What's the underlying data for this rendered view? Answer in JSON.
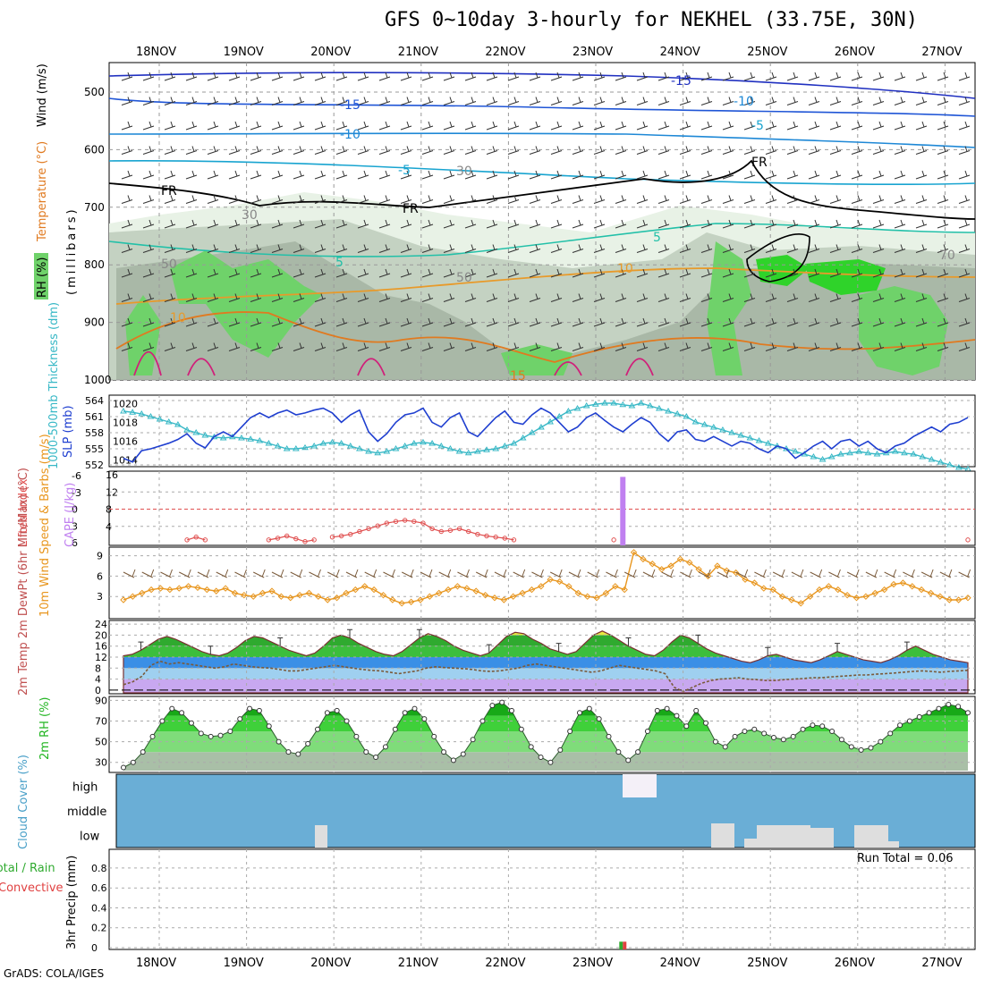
{
  "title": "GFS 0~10day 3-hourly for NEKHEL (33.75E, 30N)",
  "credit": "GrADS: COLA/IGES",
  "colors": {
    "rh_light": "#e8f2e6",
    "rh_mid": "#c4d2c2",
    "rh_gray": "#a9b8a7",
    "rh_green": "#6fd26a",
    "rh_bright": "#2fd32a",
    "cloud_bg": "#6aaed6",
    "cloud_patch": "#dedede",
    "slp": "#1f3fd0",
    "thick": "#38b8c6",
    "li": "#e05050",
    "cape": "#c080f0",
    "wind": "#e8961e",
    "barb": "#7a5a3a",
    "dew": "#7a5a3a",
    "rh2m": "#22b522"
  },
  "chart_data": [
    {
      "type": "heatmap",
      "name": "upper-air",
      "x_dates": [
        "18NOV",
        "19NOV",
        "20NOV",
        "21NOV",
        "22NOV",
        "23NOV",
        "24NOV",
        "25NOV",
        "26NOV",
        "27NOV"
      ],
      "ylabel": "(millibars)",
      "y_ticks": [
        500,
        600,
        700,
        800,
        900,
        1000
      ],
      "legend_rh": "RH (%)",
      "legend_temp": "Temperature (°C)",
      "legend_wind": "Wind (m/s)",
      "contour_labels": [
        "-15",
        "-10",
        "-5",
        "5",
        "10",
        "15",
        "FR",
        "30",
        "50",
        "70"
      ]
    },
    {
      "type": "line",
      "name": "slp-thickness",
      "y_ticks_left": [
        552,
        555,
        558,
        561,
        564
      ],
      "y_ticks_right": [
        1014,
        1016,
        1018,
        1020
      ],
      "ylabel_left": "1000-500mb Thickness (dm)",
      "ylabel_right": "SLP (mb)",
      "series": [
        {
          "name": "SLP (mb)",
          "values": [
            1014.2,
            1013.8,
            1015.0,
            1015.2,
            1015.5,
            1015.8,
            1016.2,
            1016.8,
            1015.8,
            1015.3,
            1016.5,
            1017.0,
            1016.5,
            1017.5,
            1018.5,
            1019.0,
            1018.5,
            1019.0,
            1019.3,
            1018.8,
            1019.0,
            1019.3,
            1019.5,
            1019.0,
            1018.0,
            1018.8,
            1019.3,
            1017.0,
            1016.0,
            1016.8,
            1018.0,
            1018.8,
            1019.0,
            1019.5,
            1018.0,
            1017.5,
            1018.5,
            1019.0,
            1017.0,
            1016.5,
            1017.5,
            1018.5,
            1019.2,
            1018.0,
            1017.8,
            1018.8,
            1019.5,
            1019.0,
            1018.0,
            1017.0,
            1017.5,
            1018.5,
            1019.0,
            1018.2,
            1017.5,
            1017.0,
            1017.8,
            1018.5,
            1018.0,
            1016.8,
            1016.0,
            1017.0,
            1017.2,
            1016.2,
            1016.0,
            1016.5,
            1016.0,
            1015.5,
            1016.0,
            1015.8,
            1015.2,
            1014.8,
            1015.5,
            1015.2,
            1014.2,
            1014.8,
            1015.5,
            1016.0,
            1015.2,
            1016.0,
            1016.2,
            1015.5,
            1016.0,
            1015.2,
            1014.8,
            1015.5,
            1015.8,
            1016.5,
            1017.0,
            1017.5,
            1017.0,
            1017.8,
            1018.0,
            1018.5
          ]
        },
        {
          "name": "Thickness (dm)",
          "values": [
            562.0,
            561.8,
            561.5,
            561.0,
            560.5,
            560.0,
            559.5,
            558.5,
            558.0,
            557.5,
            557.2,
            557.0,
            557.2,
            557.0,
            556.8,
            556.5,
            556.0,
            555.5,
            555.0,
            555.0,
            555.2,
            555.5,
            556.0,
            556.2,
            556.0,
            555.5,
            555.0,
            554.5,
            554.2,
            554.5,
            555.0,
            555.5,
            556.0,
            556.2,
            556.0,
            555.5,
            555.0,
            554.5,
            554.2,
            554.5,
            554.8,
            555.0,
            555.5,
            556.0,
            557.0,
            558.0,
            559.0,
            560.0,
            561.0,
            562.0,
            562.5,
            563.0,
            563.3,
            563.5,
            563.5,
            563.2,
            563.0,
            563.5,
            563.0,
            562.5,
            562.0,
            561.5,
            561.0,
            560.0,
            559.5,
            559.0,
            558.5,
            558.0,
            557.5,
            557.0,
            556.5,
            556.0,
            555.5,
            555.0,
            554.5,
            554.0,
            553.5,
            553.0,
            553.5,
            554.0,
            554.2,
            554.5,
            554.2,
            554.0,
            554.2,
            554.5,
            554.2,
            554.0,
            553.5,
            553.0,
            552.5,
            552.0,
            551.5,
            551.2
          ]
        }
      ]
    },
    {
      "type": "bar",
      "name": "cape-lifted-index",
      "ylabel_left": "Lifted Index",
      "ylabel_right": "CAPE (J/kg)",
      "y_ticks_left": [
        "-6",
        "-3",
        "0",
        "3",
        "6"
      ],
      "y_ticks_right": [
        4,
        8,
        12,
        16
      ],
      "cape_spike": {
        "x_index": 55,
        "value": 15.5
      },
      "li_values": [
        null,
        null,
        null,
        null,
        null,
        null,
        null,
        5.5,
        5.0,
        5.5,
        null,
        null,
        null,
        null,
        null,
        null,
        5.5,
        5.2,
        4.8,
        5.3,
        5.8,
        5.5,
        null,
        5.0,
        4.8,
        4.5,
        4.0,
        3.5,
        3.0,
        2.5,
        2.2,
        2.0,
        2.2,
        2.5,
        3.5,
        4.0,
        3.8,
        3.5,
        4.0,
        4.5,
        4.8,
        5.0,
        5.2,
        5.5,
        null,
        null,
        null,
        null,
        null,
        null,
        null,
        null,
        null,
        null,
        5.5,
        null,
        null,
        null,
        null,
        null,
        null,
        null,
        null,
        null,
        null,
        null,
        null,
        null,
        null,
        null,
        null,
        null,
        null,
        null,
        null,
        null,
        null,
        null,
        null,
        null,
        null,
        null,
        null,
        null,
        null,
        null,
        null,
        null,
        null,
        null,
        null,
        null,
        null,
        5.5
      ]
    },
    {
      "type": "line",
      "name": "10m-wind",
      "ylabel": "10m Wind Speed & Barbs (m/s)",
      "y_ticks": [
        3,
        6,
        9
      ],
      "values": [
        2.5,
        3.0,
        3.5,
        4.0,
        4.2,
        4.0,
        4.2,
        4.5,
        4.3,
        4.0,
        3.8,
        4.2,
        3.5,
        3.2,
        3.0,
        3.5,
        3.8,
        3.0,
        2.8,
        3.2,
        3.5,
        3.0,
        2.5,
        2.8,
        3.5,
        4.0,
        4.5,
        4.0,
        3.2,
        2.5,
        2.0,
        2.2,
        2.5,
        3.0,
        3.5,
        4.0,
        4.5,
        4.2,
        3.8,
        3.2,
        2.8,
        2.5,
        3.0,
        3.5,
        4.0,
        4.5,
        5.5,
        5.2,
        4.5,
        3.5,
        3.0,
        2.8,
        3.5,
        4.5,
        4.0,
        9.5,
        8.5,
        7.8,
        7.0,
        7.5,
        8.5,
        8.0,
        7.0,
        6.0,
        7.5,
        6.8,
        6.5,
        5.5,
        5.0,
        4.2,
        4.0,
        3.0,
        2.5,
        2.0,
        3.0,
        4.0,
        4.5,
        4.0,
        3.2,
        2.8,
        3.0,
        3.5,
        4.0,
        4.8,
        5.0,
        4.5,
        4.0,
        3.5,
        3.0,
        2.5,
        2.5,
        2.8
      ]
    },
    {
      "type": "area",
      "name": "2m-temp-dewpoint",
      "ylabel": "2m Temp 2m DewPt (6hr Min/Max) (°C)",
      "y_ticks": [
        0,
        4,
        8,
        12,
        16,
        20,
        24
      ],
      "temp": [
        12.5,
        13.0,
        14.5,
        16.5,
        18.5,
        19.5,
        18.5,
        17.0,
        15.5,
        14.0,
        13.0,
        12.5,
        13.5,
        15.5,
        18.0,
        19.5,
        19.0,
        17.5,
        16.0,
        14.5,
        13.5,
        12.5,
        13.5,
        16.0,
        19.0,
        20.0,
        19.0,
        17.0,
        15.5,
        14.0,
        13.0,
        12.5,
        14.0,
        16.5,
        19.0,
        20.5,
        19.5,
        18.0,
        16.0,
        14.5,
        13.5,
        12.5,
        13.5,
        16.5,
        19.5,
        21.0,
        20.5,
        18.5,
        17.0,
        15.0,
        14.0,
        13.0,
        14.0,
        17.0,
        20.0,
        21.5,
        20.0,
        18.0,
        16.0,
        14.5,
        13.0,
        12.5,
        14.5,
        17.5,
        20.0,
        19.0,
        17.0,
        15.0,
        13.5,
        12.5,
        11.5,
        10.5,
        10.0,
        11.0,
        12.5,
        13.0,
        12.0,
        11.0,
        10.5,
        10.0,
        11.0,
        12.5,
        14.0,
        13.0,
        12.0,
        11.0,
        10.5,
        10.0,
        11.0,
        12.5,
        14.5,
        16.0,
        14.5,
        13.0,
        12.0,
        11.0,
        10.5,
        10.0
      ],
      "dewpoint": [
        2.0,
        3.0,
        5.0,
        9.0,
        10.5,
        9.5,
        10.0,
        9.5,
        9.0,
        8.5,
        8.0,
        8.5,
        9.5,
        9.0,
        8.5,
        8.2,
        8.0,
        7.5,
        7.0,
        7.0,
        7.5,
        8.0,
        8.5,
        9.0,
        8.5,
        8.0,
        7.5,
        7.2,
        7.0,
        6.5,
        6.0,
        6.5,
        7.0,
        8.0,
        8.5,
        8.2,
        8.0,
        7.8,
        7.5,
        7.0,
        6.8,
        7.0,
        7.5,
        8.0,
        9.0,
        9.5,
        9.0,
        8.5,
        8.0,
        7.5,
        7.0,
        6.5,
        7.0,
        8.0,
        9.0,
        8.5,
        8.0,
        7.5,
        7.0,
        6.0,
        1.0,
        -0.5,
        1.0,
        2.5,
        3.5,
        4.0,
        4.2,
        4.5,
        4.0,
        3.8,
        3.5,
        3.5,
        3.8,
        4.0,
        4.2,
        4.5,
        4.5,
        4.8,
        5.0,
        5.2,
        5.5,
        5.5,
        5.8,
        6.0,
        6.2,
        6.5,
        6.8,
        7.0,
        6.8,
        6.5,
        6.8,
        7.0,
        7.2
      ]
    },
    {
      "type": "area",
      "name": "2m-rh",
      "ylabel": "2m RH (%)",
      "y_ticks": [
        30,
        50,
        70,
        90
      ],
      "values": [
        25,
        30,
        40,
        55,
        70,
        82,
        78,
        68,
        58,
        55,
        56,
        60,
        72,
        82,
        80,
        65,
        50,
        40,
        38,
        48,
        62,
        78,
        80,
        70,
        55,
        40,
        35,
        45,
        62,
        78,
        82,
        72,
        55,
        40,
        32,
        38,
        52,
        70,
        85,
        88,
        80,
        62,
        45,
        35,
        30,
        42,
        60,
        78,
        82,
        72,
        55,
        40,
        32,
        40,
        60,
        80,
        82,
        75,
        65,
        80,
        68,
        50,
        45,
        55,
        60,
        62,
        58,
        54,
        52,
        55,
        62,
        66,
        65,
        60,
        52,
        45,
        42,
        44,
        50,
        58,
        66,
        70,
        74,
        78,
        82,
        86,
        84,
        78
      ]
    },
    {
      "type": "bar",
      "name": "cloud-cover",
      "ylabel": "Cloud Cover (%)",
      "levels": [
        "high",
        "middle",
        "low"
      ]
    },
    {
      "type": "bar",
      "name": "3hr-precip",
      "ylabel_total": "Total / Rain",
      "ylabel_conv": "Convective",
      "ylabel_axis": "3hr Precip (mm)",
      "y_ticks": [
        "0",
        "0.2",
        "0.4",
        "0.6",
        "0.8"
      ],
      "run_total": "Run Total = 0.06",
      "spike": {
        "x_index": 55,
        "value": 0.06
      }
    }
  ]
}
